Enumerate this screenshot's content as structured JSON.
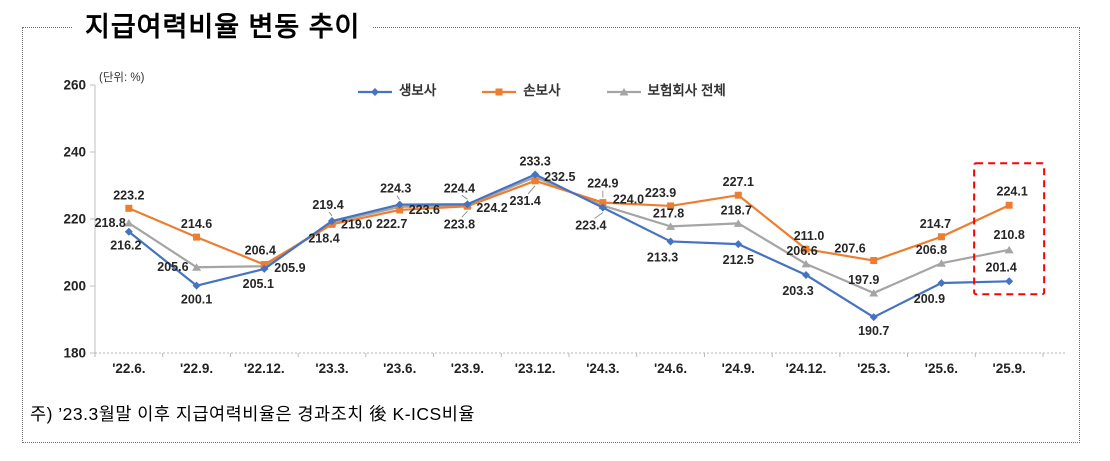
{
  "title": "지급여력비율 변동 추이",
  "unit_label": "(단위: %)",
  "note": "주) ’23.3월말 이후 지급여력비율은 경과조치 後 K-ICS비율",
  "legend": [
    {
      "label": "생보사",
      "color": "#4472C4",
      "marker": "diamond"
    },
    {
      "label": "손보사",
      "color": "#ED7D31",
      "marker": "square"
    },
    {
      "label": "보험회사 전체",
      "color": "#A5A5A5",
      "marker": "triangle"
    }
  ],
  "chart_data": {
    "type": "line",
    "title": "지급여력비율 변동 추이",
    "xlabel": "",
    "ylabel": "(단위: %)",
    "ylim": [
      180,
      260
    ],
    "yticks": [
      180,
      200,
      220,
      240,
      260
    ],
    "grid": false,
    "legend_position": "top",
    "categories": [
      "'22.6.",
      "'22.9.",
      "'22.12.",
      "'23.3.",
      "'23.6.",
      "'23.9.",
      "'23.12.",
      "'24.3.",
      "'24.6.",
      "'24.9.",
      "'24.12.",
      "'25.3.",
      "'25.6.",
      "'25.9."
    ],
    "series": [
      {
        "name": "보험회사 전체",
        "color": "#A5A5A5",
        "marker": "triangle",
        "values": [
          218.8,
          205.6,
          205.9,
          219.0,
          223.6,
          224.2,
          232.5,
          224.0,
          217.8,
          218.7,
          206.6,
          197.9,
          206.8,
          210.8
        ],
        "label_layout": [
          [
            -3,
            4,
            "e",
            0
          ],
          [
            -8,
            4,
            "e",
            0
          ],
          [
            10,
            6,
            "s",
            0
          ],
          [
            9,
            6,
            "s",
            0
          ],
          [
            9,
            7,
            "s",
            0
          ],
          [
            9,
            7,
            "s",
            0
          ],
          [
            9,
            4,
            "s",
            0
          ],
          [
            10,
            -2,
            "s",
            0
          ],
          [
            -2,
            -9,
            "m",
            0
          ],
          [
            -2,
            -9,
            "m",
            0
          ],
          [
            -4,
            -9,
            "m",
            0
          ],
          [
            -10,
            -9,
            "m",
            0
          ],
          [
            -10,
            -9,
            "m",
            0
          ],
          [
            0,
            -11,
            "m",
            0
          ]
        ]
      },
      {
        "name": "손보사",
        "color": "#ED7D31",
        "marker": "square",
        "values": [
          223.2,
          214.6,
          206.4,
          218.4,
          222.7,
          223.8,
          231.4,
          224.9,
          223.9,
          227.1,
          211.0,
          207.6,
          214.7,
          224.1
        ],
        "label_layout": [
          [
            0,
            -9,
            "m",
            0
          ],
          [
            0,
            -9,
            "m",
            0
          ],
          [
            -4,
            -10,
            "m",
            0
          ],
          [
            -8,
            18,
            "m",
            0
          ],
          [
            -8,
            18,
            "m",
            0
          ],
          [
            -8,
            22,
            "m",
            1
          ],
          [
            -10,
            24,
            "m",
            1
          ],
          [
            0,
            -15,
            "m",
            1
          ],
          [
            -10,
            -9,
            "m",
            0
          ],
          [
            0,
            -9,
            "m",
            0
          ],
          [
            3,
            -9,
            "m",
            0
          ],
          [
            -8,
            -8,
            "e",
            0
          ],
          [
            -6,
            -9,
            "m",
            0
          ],
          [
            3,
            -10,
            "m",
            0
          ]
        ]
      },
      {
        "name": "생보사",
        "color": "#4472C4",
        "marker": "diamond",
        "values": [
          216.2,
          200.1,
          205.1,
          219.4,
          224.3,
          224.4,
          233.3,
          223.4,
          213.3,
          212.5,
          203.3,
          190.7,
          200.9,
          201.4
        ],
        "label_layout": [
          [
            -3,
            18,
            "m",
            0
          ],
          [
            0,
            18,
            "m",
            0
          ],
          [
            -6,
            19,
            "m",
            0
          ],
          [
            -4,
            -12,
            "m",
            1
          ],
          [
            -4,
            -12,
            "m",
            1
          ],
          [
            -8,
            -12,
            "m",
            1
          ],
          [
            0,
            -9,
            "m",
            0
          ],
          [
            -12,
            22,
            "m",
            1
          ],
          [
            -8,
            20,
            "m",
            0
          ],
          [
            0,
            20,
            "m",
            0
          ],
          [
            -8,
            20,
            "m",
            0
          ],
          [
            0,
            18,
            "m",
            0
          ],
          [
            -12,
            20,
            "m",
            0
          ],
          [
            -8,
            -10,
            "m",
            0
          ]
        ]
      }
    ],
    "highlight": {
      "category_index": 13,
      "color": "#FF0000",
      "style": "dashed"
    }
  }
}
